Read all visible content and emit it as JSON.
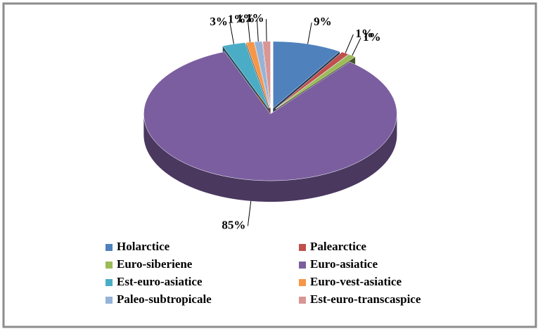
{
  "chart_data": {
    "type": "pie",
    "three_d": true,
    "legend": "bottom",
    "categories": [
      "Holarctice",
      "Palearctice",
      "Euro-siberiene",
      "Euro-asiatice",
      "Est-euro-asiatice",
      "Euro-vest-asiatice",
      "Paleo-subtropicale",
      "Est-euro-transcaspice"
    ],
    "values": [
      9,
      1,
      1,
      85,
      3,
      1,
      1,
      1
    ],
    "value_labels": [
      "9%",
      "1%",
      "1%",
      "85%",
      "3%",
      "1%",
      "1%",
      "1%"
    ],
    "colors": [
      "#4f81bd",
      "#c0504d",
      "#9bbb59",
      "#7b5e9f",
      "#4bacc6",
      "#f79646",
      "#95b3d7",
      "#d99694"
    ]
  }
}
